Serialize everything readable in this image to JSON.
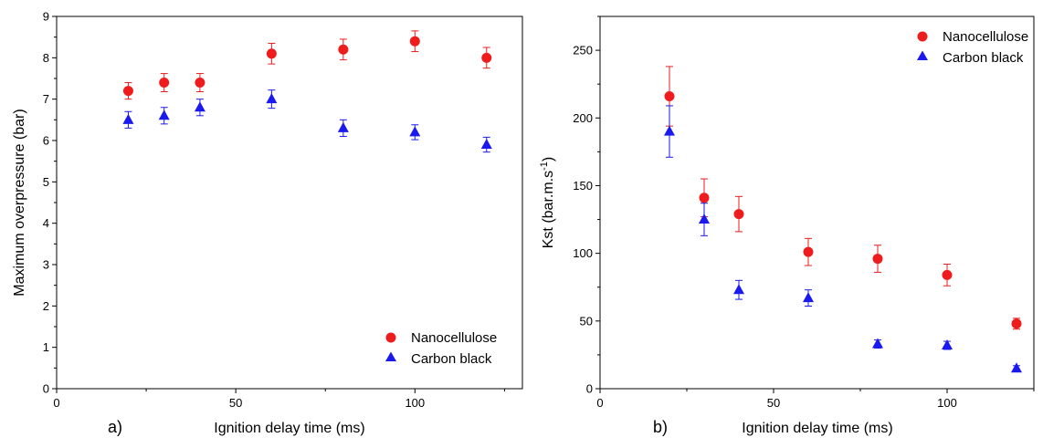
{
  "chart_data": [
    {
      "type": "scatter",
      "panel_label": "a)",
      "xlabel": "Ignition delay time (ms)",
      "ylabel": "Maximum overpressure (bar)",
      "xlim": [
        0,
        130
      ],
      "ylim": [
        0,
        9
      ],
      "x_ticks": [
        0,
        50,
        100
      ],
      "y_ticks": [
        0,
        1,
        2,
        3,
        4,
        5,
        6,
        7,
        8,
        9
      ],
      "legend_position": "bottom-right",
      "series": [
        {
          "name": "Nanocellulose",
          "marker": "circle",
          "color": "#ee1c1c",
          "x": [
            20,
            30,
            40,
            60,
            80,
            100,
            120
          ],
          "y": [
            7.2,
            7.4,
            7.4,
            8.1,
            8.2,
            8.4,
            8.0
          ],
          "error": [
            0.2,
            0.22,
            0.22,
            0.25,
            0.25,
            0.25,
            0.25
          ]
        },
        {
          "name": "Carbon black",
          "marker": "triangle",
          "color": "#1a1aee",
          "x": [
            20,
            30,
            40,
            60,
            80,
            100,
            120
          ],
          "y": [
            6.5,
            6.6,
            6.8,
            7.0,
            6.3,
            6.2,
            5.9
          ],
          "error": [
            0.2,
            0.2,
            0.2,
            0.22,
            0.2,
            0.18,
            0.18
          ]
        }
      ]
    },
    {
      "type": "scatter",
      "panel_label": "b)",
      "xlabel": "Ignition delay time (ms)",
      "ylabel": "Kst (bar.m.s",
      "ylabel_sup": "-1",
      "ylabel_end": ")",
      "xlim": [
        0,
        125
      ],
      "ylim": [
        0,
        275
      ],
      "x_ticks": [
        0,
        50,
        100
      ],
      "y_ticks": [
        0,
        50,
        100,
        150,
        200,
        250
      ],
      "legend_position": "top-right",
      "series": [
        {
          "name": "Nanocellulose",
          "marker": "circle",
          "color": "#ee1c1c",
          "x": [
            20,
            30,
            40,
            60,
            80,
            100,
            120
          ],
          "y": [
            216,
            141,
            129,
            101,
            96,
            84,
            48
          ],
          "error": [
            22,
            14,
            13,
            10,
            10,
            8,
            4
          ]
        },
        {
          "name": "Carbon black",
          "marker": "triangle",
          "color": "#1a1aee",
          "x": [
            20,
            30,
            40,
            60,
            80,
            100,
            120
          ],
          "y": [
            190,
            125,
            73,
            67,
            33,
            32,
            15
          ],
          "error": [
            19,
            12,
            7,
            6,
            3,
            3,
            2
          ]
        }
      ]
    }
  ]
}
